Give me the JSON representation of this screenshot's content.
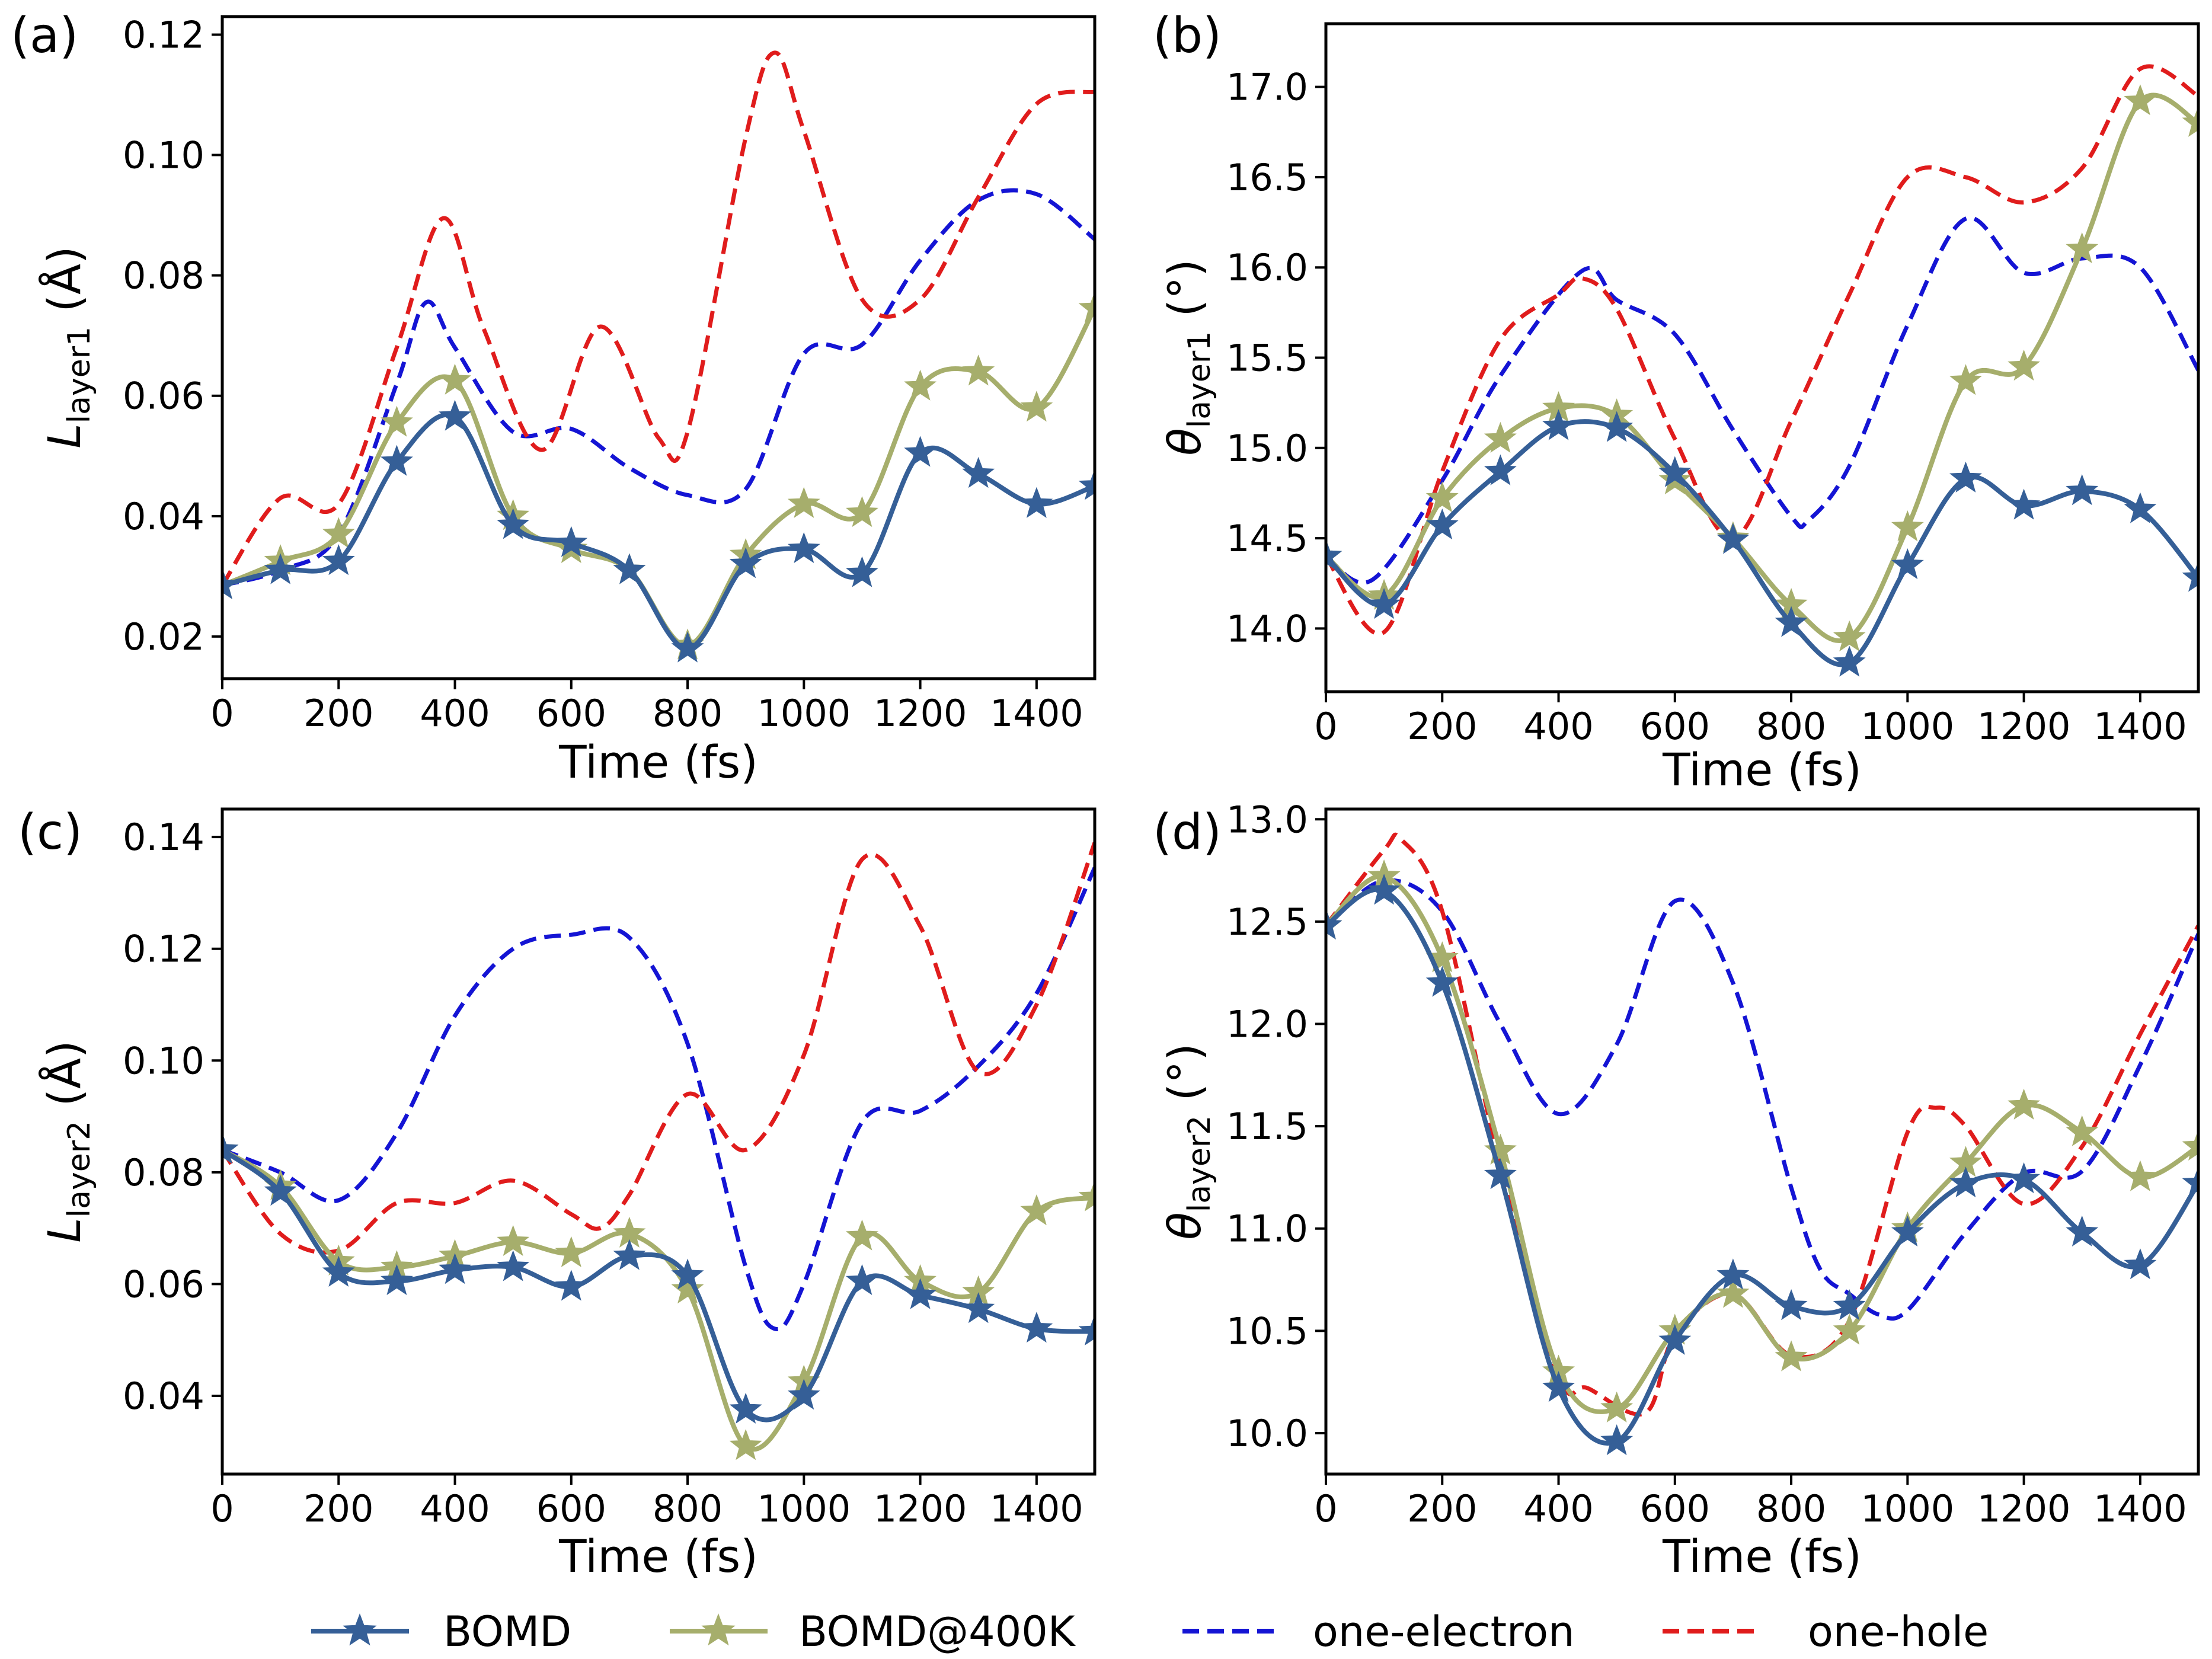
{
  "series_styles": [
    {
      "name": "BOMD",
      "color": "#355f97",
      "dash": "none",
      "marker": "star"
    },
    {
      "name": "BOMD@400K",
      "color": "#a6ae6c",
      "dash": "none",
      "marker": "star"
    },
    {
      "name": "one-electron",
      "color": "#1414d4",
      "dash": "dashed",
      "marker": "none"
    },
    {
      "name": "one-hole",
      "color": "#e01c1c",
      "dash": "dashed",
      "marker": "none"
    }
  ],
  "legend": {
    "items": [
      "BOMD",
      "BOMD@400K",
      "one-electron",
      "one-hole"
    ],
    "position": "bottom-center"
  },
  "chart_data": [
    {
      "type": "line",
      "panel_label": "(a)",
      "xlabel": "Time (fs)",
      "ylabel_symbol": "L",
      "ylabel_sub": "layer1",
      "ylabel_unit": " (Å)",
      "xlim": [
        0,
        1500
      ],
      "ylim": [
        0.013,
        0.123
      ],
      "xticks": [
        0,
        200,
        400,
        600,
        800,
        1000,
        1200,
        1400
      ],
      "yticks": [
        0.02,
        0.04,
        0.06,
        0.08,
        0.1,
        0.12
      ],
      "yfmt": 2,
      "series": [
        {
          "name": "BOMD",
          "x": [
            0,
            100,
            200,
            300,
            400,
            500,
            600,
            700,
            800,
            900,
            1000,
            1100,
            1200,
            1300,
            1400,
            1500
          ],
          "values": [
            0.0285,
            0.031,
            0.0325,
            0.049,
            0.0565,
            0.0385,
            0.0355,
            0.031,
            0.018,
            0.032,
            0.0345,
            0.0305,
            0.0505,
            0.047,
            0.042,
            0.045
          ]
        },
        {
          "name": "BOMD@400K",
          "x": [
            0,
            100,
            200,
            300,
            400,
            500,
            600,
            700,
            800,
            900,
            1000,
            1100,
            1200,
            1300,
            1400,
            1500
          ],
          "values": [
            0.0285,
            0.0325,
            0.037,
            0.0555,
            0.0625,
            0.04,
            0.0345,
            0.031,
            0.0185,
            0.0335,
            0.042,
            0.0405,
            0.0615,
            0.064,
            0.058,
            0.0745
          ]
        },
        {
          "name": "one-electron",
          "x": [
            0,
            100,
            200,
            300,
            350,
            400,
            500,
            600,
            700,
            800,
            900,
            1000,
            1100,
            1200,
            1300,
            1400,
            1500
          ],
          "values": [
            0.0285,
            0.031,
            0.037,
            0.062,
            0.0755,
            0.068,
            0.054,
            0.0545,
            0.048,
            0.0435,
            0.0445,
            0.067,
            0.0685,
            0.0825,
            0.0925,
            0.0935,
            0.086
          ]
        },
        {
          "name": "one-hole",
          "x": [
            0,
            100,
            200,
            300,
            380,
            450,
            550,
            650,
            750,
            800,
            900,
            950,
            1000,
            1100,
            1200,
            1300,
            1400,
            1500
          ],
          "values": [
            0.0285,
            0.043,
            0.042,
            0.068,
            0.0895,
            0.071,
            0.051,
            0.0715,
            0.053,
            0.054,
            0.103,
            0.117,
            0.104,
            0.076,
            0.076,
            0.093,
            0.1085,
            0.1105
          ]
        }
      ]
    },
    {
      "type": "line",
      "panel_label": "(b)",
      "xlabel": "Time (fs)",
      "ylabel_symbol": "θ",
      "ylabel_sub": "layer1",
      "ylabel_unit": " (°)",
      "xlim": [
        0,
        1500
      ],
      "ylim": [
        13.65,
        17.35
      ],
      "xticks": [
        0,
        200,
        400,
        600,
        800,
        1000,
        1200,
        1400
      ],
      "yticks": [
        14.0,
        14.5,
        15.0,
        15.5,
        16.0,
        16.5,
        17.0
      ],
      "yfmt": 1,
      "series": [
        {
          "name": "BOMD",
          "x": [
            0,
            100,
            200,
            300,
            400,
            500,
            600,
            700,
            800,
            900,
            1000,
            1100,
            1200,
            1300,
            1400,
            1500
          ],
          "values": [
            14.4,
            14.13,
            14.57,
            14.87,
            15.12,
            15.11,
            14.86,
            14.49,
            14.03,
            13.81,
            14.35,
            14.83,
            14.68,
            14.76,
            14.66,
            14.28
          ]
        },
        {
          "name": "BOMD@400K",
          "x": [
            0,
            100,
            200,
            300,
            400,
            500,
            600,
            700,
            800,
            900,
            1000,
            1100,
            1200,
            1300,
            1400,
            1500
          ],
          "values": [
            14.4,
            14.18,
            14.72,
            15.05,
            15.22,
            15.18,
            14.82,
            14.5,
            14.13,
            13.95,
            14.56,
            15.37,
            15.45,
            16.1,
            16.92,
            16.8
          ]
        },
        {
          "name": "one-electron",
          "x": [
            0,
            80,
            200,
            300,
            440,
            500,
            600,
            700,
            800,
            830,
            900,
            1000,
            1100,
            1200,
            1300,
            1400,
            1500
          ],
          "values": [
            14.4,
            14.27,
            14.82,
            15.4,
            15.98,
            15.82,
            15.63,
            15.1,
            14.62,
            14.6,
            14.9,
            15.68,
            16.27,
            15.97,
            16.05,
            16.0,
            15.43
          ]
        },
        {
          "name": "one-hole",
          "x": [
            0,
            100,
            200,
            300,
            400,
            440,
            500,
            600,
            700,
            800,
            900,
            1000,
            1100,
            1200,
            1300,
            1400,
            1500
          ],
          "values": [
            14.4,
            13.98,
            14.87,
            15.6,
            15.85,
            15.94,
            15.77,
            15.05,
            14.5,
            15.15,
            15.85,
            16.5,
            16.5,
            16.36,
            16.55,
            17.1,
            16.95
          ]
        }
      ]
    },
    {
      "type": "line",
      "panel_label": "(c)",
      "xlabel": "Time (fs)",
      "ylabel_symbol": "L",
      "ylabel_sub": "layer2",
      "ylabel_unit": " (Å)",
      "xlim": [
        0,
        1500
      ],
      "ylim": [
        0.026,
        0.145
      ],
      "xticks": [
        0,
        200,
        400,
        600,
        800,
        1000,
        1200,
        1400
      ],
      "yticks": [
        0.04,
        0.06,
        0.08,
        0.1,
        0.12,
        0.14
      ],
      "yfmt": 2,
      "series": [
        {
          "name": "BOMD",
          "x": [
            0,
            100,
            200,
            300,
            400,
            500,
            600,
            700,
            800,
            900,
            1000,
            1100,
            1200,
            1300,
            1400,
            1500
          ],
          "values": [
            0.084,
            0.0765,
            0.062,
            0.0605,
            0.0625,
            0.063,
            0.0595,
            0.065,
            0.0615,
            0.0375,
            0.04,
            0.0605,
            0.058,
            0.0555,
            0.052,
            0.0515
          ]
        },
        {
          "name": "BOMD@400K",
          "x": [
            0,
            100,
            200,
            300,
            400,
            500,
            600,
            700,
            800,
            900,
            1000,
            1100,
            1200,
            1300,
            1400,
            1500
          ],
          "values": [
            0.084,
            0.0775,
            0.064,
            0.063,
            0.065,
            0.0675,
            0.0655,
            0.069,
            0.059,
            0.031,
            0.0425,
            0.0685,
            0.0605,
            0.0585,
            0.073,
            0.0755
          ]
        },
        {
          "name": "one-electron",
          "x": [
            0,
            100,
            200,
            300,
            400,
            500,
            600,
            700,
            800,
            900,
            950,
            1000,
            1100,
            1200,
            1300,
            1400,
            1500
          ],
          "values": [
            0.084,
            0.08,
            0.075,
            0.087,
            0.108,
            0.12,
            0.1225,
            0.122,
            0.103,
            0.063,
            0.052,
            0.06,
            0.089,
            0.091,
            0.099,
            0.112,
            0.1345
          ]
        },
        {
          "name": "one-hole",
          "x": [
            0,
            100,
            200,
            300,
            400,
            500,
            600,
            650,
            700,
            800,
            900,
            1000,
            1100,
            1200,
            1300,
            1400,
            1500
          ],
          "values": [
            0.084,
            0.069,
            0.066,
            0.0745,
            0.0745,
            0.0785,
            0.0725,
            0.07,
            0.076,
            0.094,
            0.084,
            0.101,
            0.136,
            0.124,
            0.098,
            0.11,
            0.139
          ]
        }
      ]
    },
    {
      "type": "line",
      "panel_label": "(d)",
      "xlabel": "Time (fs)",
      "ylabel_symbol": "θ",
      "ylabel_sub": "layer2",
      "ylabel_unit": " (°)",
      "xlim": [
        0,
        1500
      ],
      "ylim": [
        9.8,
        13.05
      ],
      "xticks": [
        0,
        200,
        400,
        600,
        800,
        1000,
        1200,
        1400
      ],
      "yticks": [
        10.0,
        10.5,
        11.0,
        11.5,
        12.0,
        12.5,
        13.0
      ],
      "yfmt": 1,
      "series": [
        {
          "name": "BOMD",
          "x": [
            0,
            100,
            200,
            300,
            400,
            500,
            600,
            700,
            800,
            900,
            1000,
            1100,
            1200,
            1300,
            1400,
            1500
          ],
          "values": [
            12.48,
            12.65,
            12.2,
            11.26,
            10.22,
            9.96,
            10.45,
            10.77,
            10.62,
            10.62,
            10.98,
            11.22,
            11.24,
            10.98,
            10.82,
            11.22
          ]
        },
        {
          "name": "BOMD@400K",
          "x": [
            0,
            100,
            200,
            300,
            400,
            500,
            600,
            700,
            800,
            900,
            1000,
            1100,
            1200,
            1300,
            1400,
            1500
          ],
          "values": [
            12.48,
            12.72,
            12.32,
            11.38,
            10.3,
            10.12,
            10.5,
            10.68,
            10.37,
            10.5,
            11.0,
            11.32,
            11.6,
            11.47,
            11.25,
            11.4
          ]
        },
        {
          "name": "one-electron",
          "x": [
            0,
            100,
            200,
            300,
            400,
            500,
            600,
            700,
            800,
            850,
            900,
            950,
            1000,
            1100,
            1200,
            1300,
            1400,
            1500
          ],
          "values": [
            12.48,
            12.7,
            12.55,
            12.0,
            11.56,
            11.9,
            12.6,
            12.2,
            11.2,
            10.8,
            10.68,
            10.58,
            10.6,
            10.98,
            11.27,
            11.28,
            11.8,
            12.44
          ]
        },
        {
          "name": "one-hole",
          "x": [
            0,
            100,
            130,
            200,
            300,
            400,
            450,
            550,
            600,
            700,
            800,
            900,
            1000,
            1050,
            1100,
            1200,
            1300,
            1400,
            1500
          ],
          "values": [
            12.48,
            12.85,
            12.9,
            12.55,
            11.3,
            10.28,
            10.22,
            10.1,
            10.48,
            10.68,
            10.38,
            10.55,
            11.47,
            11.59,
            11.5,
            11.12,
            11.4,
            11.95,
            12.48
          ]
        }
      ]
    }
  ]
}
